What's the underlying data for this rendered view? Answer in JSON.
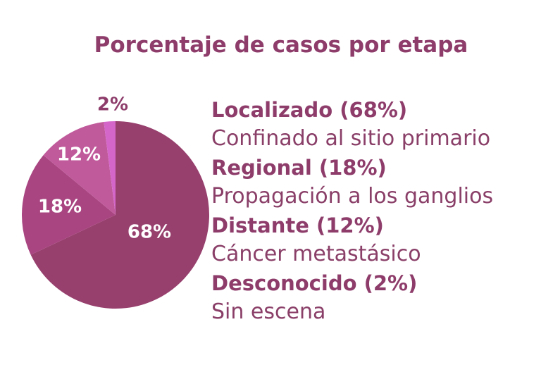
{
  "chart_data": {
    "type": "pie",
    "title": "Porcentaje de casos por etapa",
    "slices": [
      {
        "label": "68%",
        "value": 68,
        "color": "#973f6d"
      },
      {
        "label": "18%",
        "value": 18,
        "color": "#a94581"
      },
      {
        "label": "12%",
        "value": 12,
        "color": "#c05a9b"
      },
      {
        "label": "2%",
        "value": 2,
        "color": "#d466c9"
      }
    ],
    "legend": [
      {
        "name": "Localizado (68%)",
        "desc": "Confinado al sitio primario"
      },
      {
        "name": "Regional (18%)",
        "desc": "Propagación a los ganglios"
      },
      {
        "name": "Distante (12%)",
        "desc": "Cáncer metastásico"
      },
      {
        "name": "Desconocido (2%)",
        "desc": "Sin escena"
      }
    ]
  }
}
